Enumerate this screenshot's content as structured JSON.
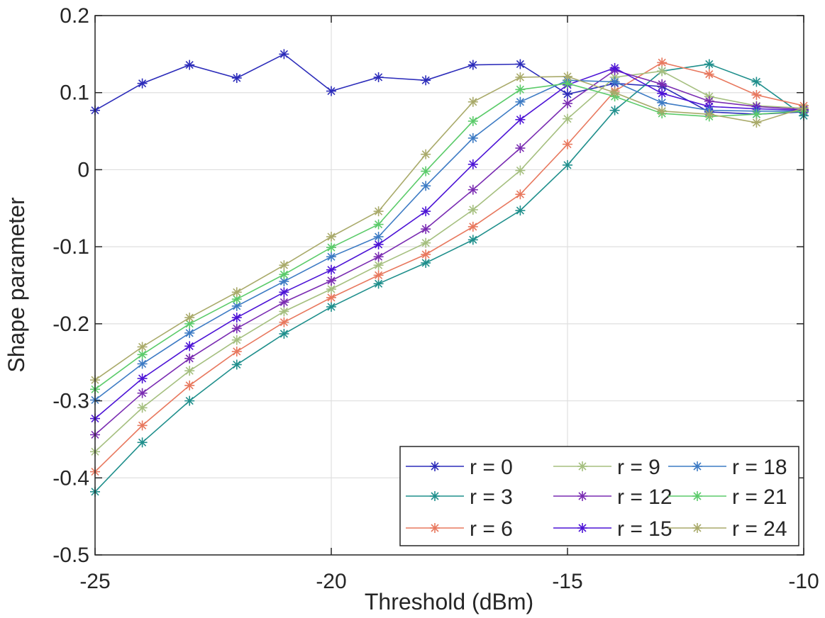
{
  "chart_data": {
    "type": "line",
    "title": "",
    "xlabel": "Threshold (dBm)",
    "ylabel": "Shape parameter",
    "xlim": [
      -25,
      -10
    ],
    "ylim": [
      -0.5,
      0.2
    ],
    "x_ticks": [
      -25,
      -20,
      -15,
      -10
    ],
    "x_tick_labels": [
      "-25",
      "-20",
      "-15",
      "-10"
    ],
    "y_ticks": [
      -0.5,
      -0.4,
      -0.3,
      -0.2,
      -0.1,
      0,
      0.1,
      0.2
    ],
    "y_tick_labels": [
      "-0.5",
      "-0.4",
      "-0.3",
      "-0.2",
      "-0.1",
      "0",
      "0.1",
      "0.2"
    ],
    "grid": true,
    "marker": "asterisk",
    "legend_position": "bottom-right",
    "x": [
      -25,
      -24,
      -23,
      -22,
      -21,
      -20,
      -19,
      -18,
      -17,
      -16,
      -15,
      -14,
      -13,
      -12,
      -11,
      -10
    ],
    "series": [
      {
        "name": "r = 0",
        "color": "#2c2cba",
        "values": [
          0.077,
          0.112,
          0.136,
          0.119,
          0.15,
          0.102,
          0.12,
          0.116,
          0.136,
          0.137,
          0.098,
          0.112,
          0.108,
          0.075,
          0.072,
          0.075
        ]
      },
      {
        "name": "r = 3",
        "color": "#1f8f8c",
        "values": [
          -0.418,
          -0.354,
          -0.3,
          -0.253,
          -0.213,
          -0.178,
          -0.148,
          -0.121,
          -0.091,
          -0.053,
          0.006,
          0.077,
          0.128,
          0.137,
          0.114,
          0.07
        ]
      },
      {
        "name": "r = 6",
        "color": "#e8785e",
        "values": [
          -0.392,
          -0.332,
          -0.28,
          -0.236,
          -0.198,
          -0.166,
          -0.137,
          -0.11,
          -0.074,
          -0.032,
          0.033,
          0.102,
          0.139,
          0.124,
          0.097,
          0.083
        ]
      },
      {
        "name": "r = 9",
        "color": "#a5bf7f",
        "values": [
          -0.366,
          -0.309,
          -0.261,
          -0.221,
          -0.184,
          -0.155,
          -0.124,
          -0.095,
          -0.052,
          -0.001,
          0.066,
          0.12,
          0.128,
          0.095,
          0.083,
          0.08
        ]
      },
      {
        "name": "r = 12",
        "color": "#7a2cb2",
        "values": [
          -0.344,
          -0.29,
          -0.245,
          -0.206,
          -0.172,
          -0.144,
          -0.113,
          -0.077,
          -0.026,
          0.028,
          0.086,
          0.129,
          0.111,
          0.089,
          0.082,
          0.078
        ]
      },
      {
        "name": "r = 15",
        "color": "#4d14d6",
        "values": [
          -0.323,
          -0.271,
          -0.229,
          -0.192,
          -0.159,
          -0.13,
          -0.097,
          -0.054,
          0.007,
          0.065,
          0.11,
          0.132,
          0.099,
          0.082,
          0.079,
          0.077
        ]
      },
      {
        "name": "r = 18",
        "color": "#3d7bc4",
        "values": [
          -0.299,
          -0.252,
          -0.212,
          -0.177,
          -0.145,
          -0.113,
          -0.087,
          -0.021,
          0.041,
          0.088,
          0.116,
          0.114,
          0.087,
          0.077,
          0.076,
          0.076
        ]
      },
      {
        "name": "r = 21",
        "color": "#5bcb6a",
        "values": [
          -0.285,
          -0.24,
          -0.2,
          -0.168,
          -0.136,
          -0.101,
          -0.071,
          -0.002,
          0.063,
          0.104,
          0.112,
          0.095,
          0.073,
          0.069,
          0.072,
          0.076
        ]
      },
      {
        "name": "r = 24",
        "color": "#a9aa6a",
        "values": [
          -0.273,
          -0.23,
          -0.192,
          -0.159,
          -0.124,
          -0.087,
          -0.054,
          0.02,
          0.088,
          0.12,
          0.121,
          0.1,
          0.076,
          0.072,
          0.061,
          0.08
        ]
      }
    ]
  }
}
